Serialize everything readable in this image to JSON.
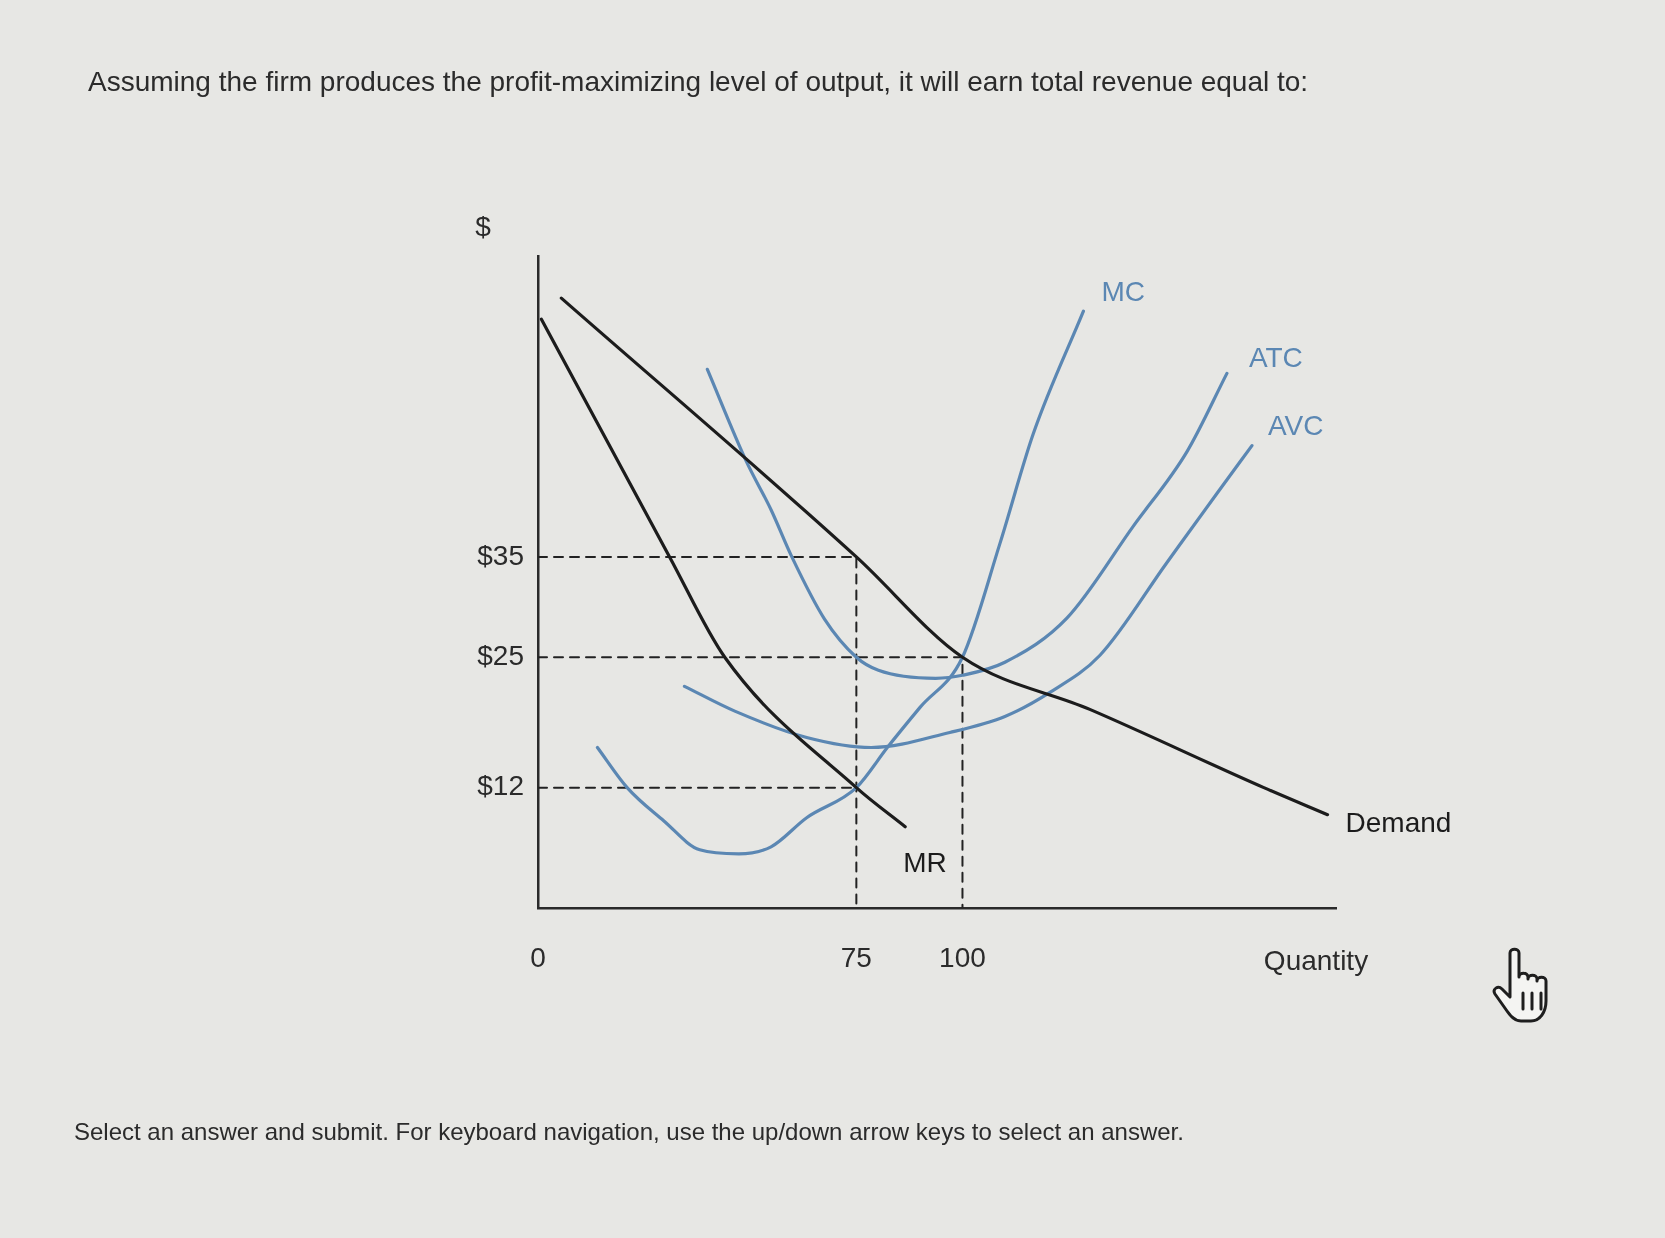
{
  "chart_data": {
    "type": "line",
    "title": "Assuming the firm produces the profit-maximizing level of output, it will earn total revenue equal to:",
    "xlabel": "Quantity",
    "ylabel": "$",
    "annotations": [
      "Select an answer and submit. For keyboard navigation, use the up/down arrow keys to select an answer."
    ],
    "xlim": [
      0,
      188
    ],
    "ylim": [
      0,
      65
    ],
    "xticks": [
      0,
      75,
      100
    ],
    "yticks": [
      {
        "value": 12,
        "label": "$12"
      },
      {
        "value": 25,
        "label": "$25"
      },
      {
        "value": 35,
        "label": "$35"
      }
    ],
    "grid": false,
    "legend": false,
    "marker": "none",
    "series": [
      {
        "name": "Demand",
        "color": "#1c1c1c",
        "x": [
          5.5,
          75,
          100,
          130,
          171,
          186
        ],
        "values": [
          60.8,
          35,
          25,
          19.8,
          12,
          9.3
        ]
      },
      {
        "name": "MR",
        "color": "#1c1c1c",
        "x": [
          0.8,
          31,
          44,
          75,
          86.5
        ],
        "values": [
          58.7,
          35,
          25,
          12,
          8.1
        ]
      },
      {
        "name": "MC",
        "color": "#5b87b3",
        "x": [
          14,
          21,
          29.6,
          38.1,
          47.3,
          54.9,
          63.3,
          75,
          82.3,
          90,
          100,
          108.8,
          116.7,
          128.5
        ],
        "values": [
          16,
          12,
          8.7,
          5.8,
          5.4,
          6.1,
          9,
          12,
          16,
          20,
          25,
          36.3,
          47.3,
          59.5
        ]
      },
      {
        "name": "ATC",
        "color": "#5b87b3",
        "x": [
          39.9,
          49,
          54.9,
          59.8,
          67.5,
          75,
          80.2,
          93.7,
          100,
          110,
          124.6,
          140.3,
          152.9,
          162.3
        ],
        "values": [
          53.7,
          44.6,
          39.7,
          35,
          28.8,
          25,
          23.7,
          22.9,
          23.2,
          24.5,
          28.9,
          38.1,
          45.5,
          53.3
        ]
      },
      {
        "name": "AVC",
        "color": "#5b87b3",
        "x": [
          34.5,
          46.5,
          63.3,
          78.5,
          97,
          110,
          120.6,
          132.4,
          148.1,
          159.9,
          168.2
        ],
        "values": [
          22.1,
          19.6,
          17,
          16,
          17.5,
          19.1,
          21.5,
          25.2,
          34.4,
          41.3,
          46.1
        ]
      },
      {
        "color": "#222222",
        "line_style": "dashed",
        "x": [
          0,
          75,
          75
        ],
        "values": [
          35,
          35,
          0
        ]
      },
      {
        "color": "#222222",
        "line_style": "dashed",
        "x": [
          0,
          100,
          100
        ],
        "values": [
          25,
          25,
          0
        ]
      },
      {
        "color": "#222222",
        "line_style": "dashed",
        "x": [
          0,
          75
        ],
        "values": [
          12,
          12
        ]
      }
    ]
  }
}
